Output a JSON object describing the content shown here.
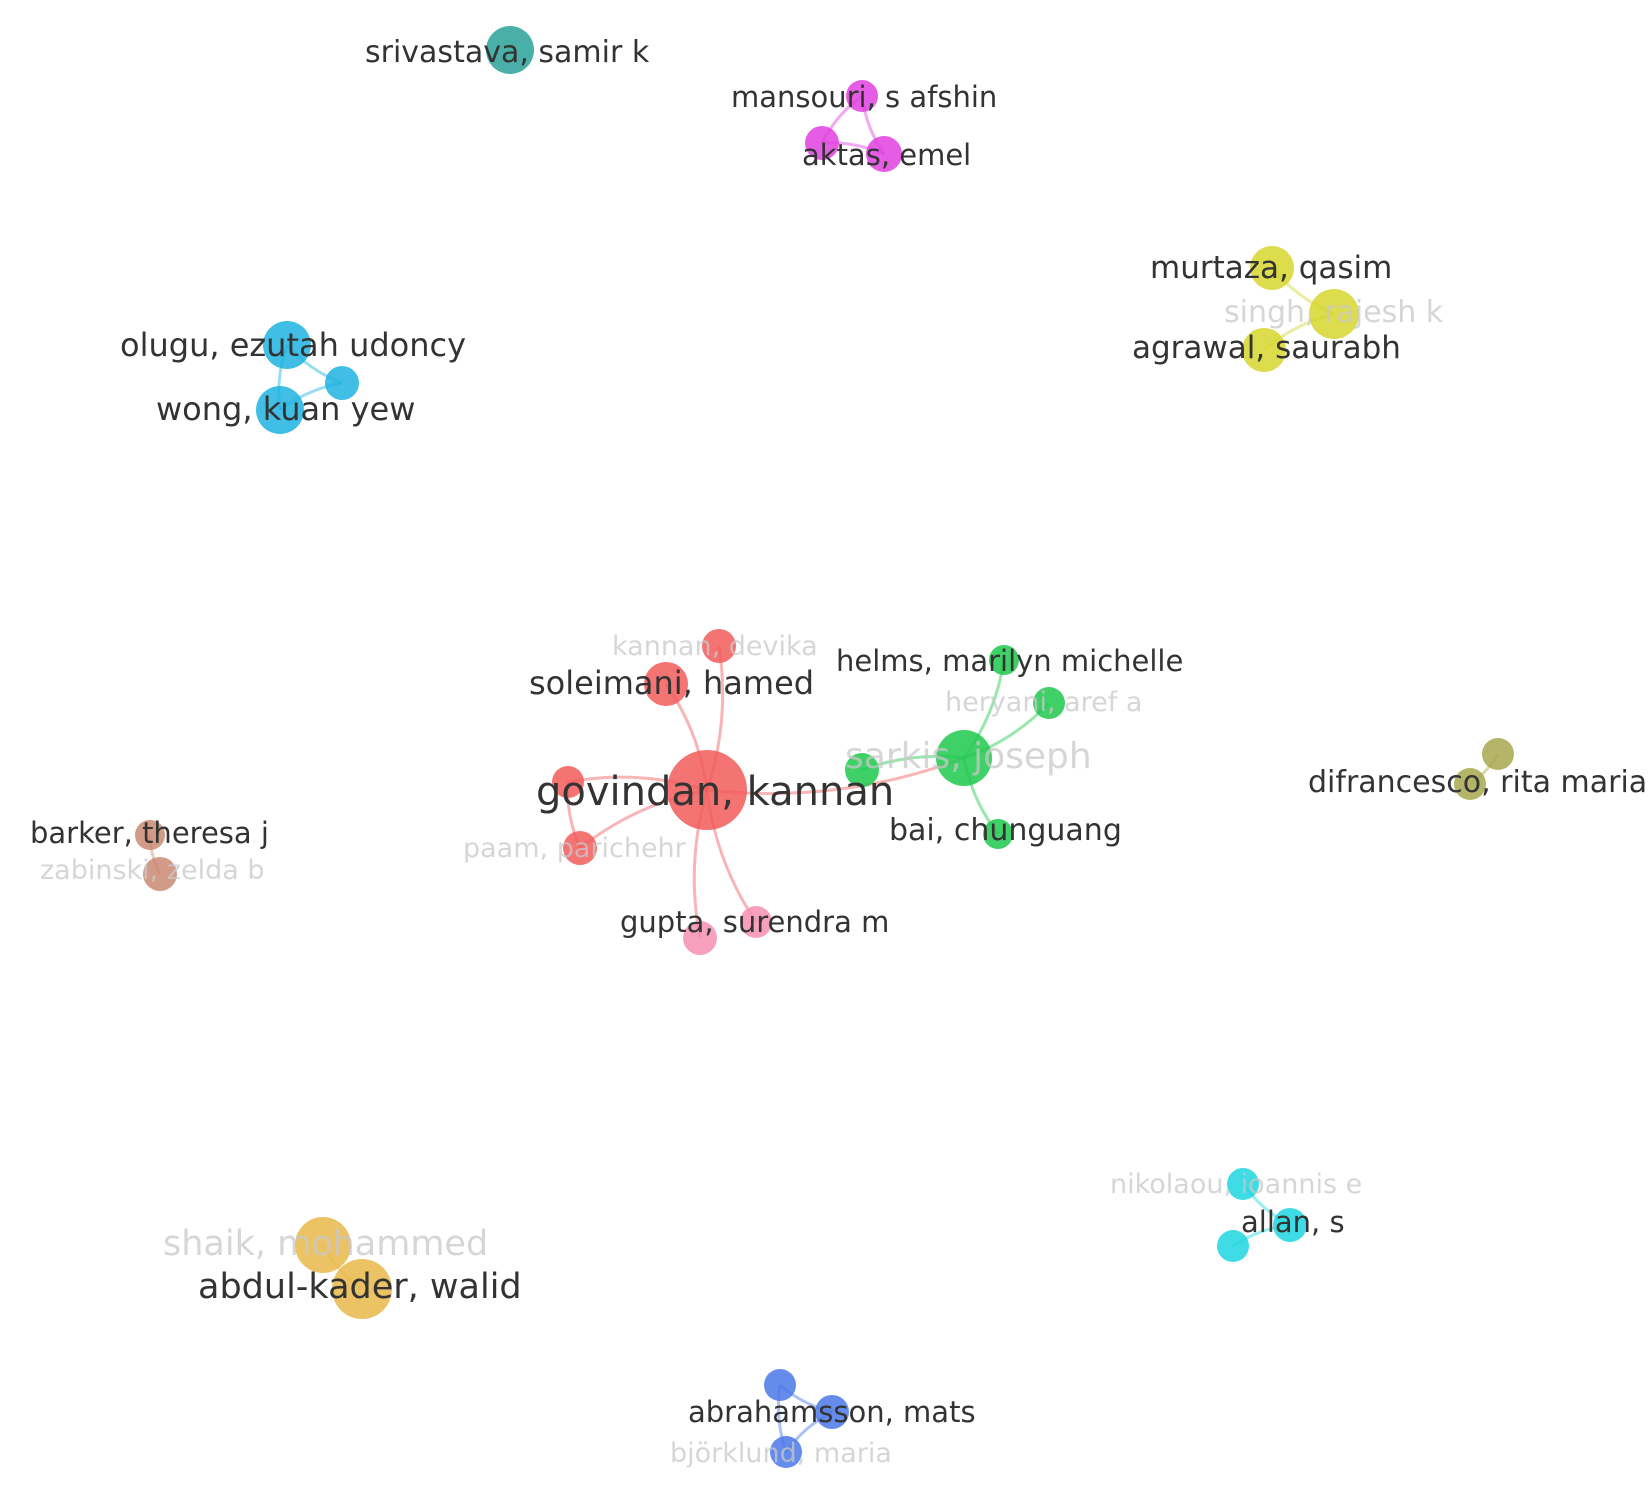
{
  "network": {
    "type": "co-authorship network",
    "nodes": [
      {
        "id": "srivastava",
        "label": "srivastava, samir k",
        "color": "#2aa198",
        "cluster": "teal",
        "weight": 2,
        "faded": false
      },
      {
        "id": "mansouri",
        "label": "mansouri, s afshin",
        "color": "#e040e0",
        "cluster": "magenta",
        "weight": 1,
        "faded": false
      },
      {
        "id": "aktas",
        "label": "aktas, emel",
        "color": "#e040e0",
        "cluster": "magenta",
        "weight": 1,
        "faded": false
      },
      {
        "id": "magenta3",
        "label": "",
        "color": "#e040e0",
        "cluster": "magenta",
        "weight": 1,
        "faded": false
      },
      {
        "id": "murtaza",
        "label": "murtaza, qasim",
        "color": "#d6d62e",
        "cluster": "yellow",
        "weight": 2,
        "faded": false
      },
      {
        "id": "singh",
        "label": "singh, rajesh k",
        "color": "#d6d62e",
        "cluster": "yellow",
        "weight": 2,
        "faded": true
      },
      {
        "id": "agrawal",
        "label": "agrawal, saurabh",
        "color": "#d6d62e",
        "cluster": "yellow",
        "weight": 2,
        "faded": false
      },
      {
        "id": "olugu",
        "label": "olugu, ezutah udoncy",
        "color": "#1fb3e0",
        "cluster": "skyblue",
        "weight": 2,
        "faded": false
      },
      {
        "id": "skyblue3",
        "label": "",
        "color": "#1fb3e0",
        "cluster": "skyblue",
        "weight": 1,
        "faded": false
      },
      {
        "id": "wong",
        "label": "wong, kuan yew",
        "color": "#1fb3e0",
        "cluster": "skyblue",
        "weight": 2,
        "faded": false
      },
      {
        "id": "kannan",
        "label": "kannan, devika",
        "color": "#f25a5a",
        "cluster": "red",
        "weight": 1,
        "faded": true
      },
      {
        "id": "soleimani",
        "label": "soleimani, hamed",
        "color": "#f25a5a",
        "cluster": "red",
        "weight": 2,
        "faded": false
      },
      {
        "id": "govindan",
        "label": "govindan, kannan",
        "color": "#f25a5a",
        "cluster": "red",
        "weight": 5,
        "faded": false
      },
      {
        "id": "red4",
        "label": "",
        "color": "#f25a5a",
        "cluster": "red",
        "weight": 1,
        "faded": false
      },
      {
        "id": "paam",
        "label": "paam, parichehr",
        "color": "#f25a5a",
        "cluster": "red",
        "weight": 1,
        "faded": true
      },
      {
        "id": "gupta",
        "label": "gupta, surendra m",
        "color": "#f48fb1",
        "cluster": "pink",
        "weight": 1,
        "faded": false
      },
      {
        "id": "pink2",
        "label": "",
        "color": "#f48fb1",
        "cluster": "pink",
        "weight": 1,
        "faded": false
      },
      {
        "id": "helms",
        "label": "helms, marilyn michelle",
        "color": "#1ec84e",
        "cluster": "green",
        "weight": 1,
        "faded": false
      },
      {
        "id": "heryani",
        "label": "heryani, aref a",
        "color": "#1ec84e",
        "cluster": "green",
        "weight": 1,
        "faded": true
      },
      {
        "id": "sarkis",
        "label": "sarkis, joseph",
        "color": "#1ec84e",
        "cluster": "green",
        "weight": 3,
        "faded": true
      },
      {
        "id": "green4",
        "label": "",
        "color": "#1ec84e",
        "cluster": "green",
        "weight": 1,
        "faded": false
      },
      {
        "id": "bai",
        "label": "bai, chunguang",
        "color": "#1ec84e",
        "cluster": "green",
        "weight": 1,
        "faded": false
      },
      {
        "id": "difrancesco",
        "label": "difrancesco, rita maria",
        "color": "#a8a850",
        "cluster": "olive",
        "weight": 1,
        "faded": false
      },
      {
        "id": "olive2",
        "label": "",
        "color": "#a8a850",
        "cluster": "olive",
        "weight": 1,
        "faded": false
      },
      {
        "id": "barker",
        "label": "barker, theresa j",
        "color": "#c98a72",
        "cluster": "brown",
        "weight": 1,
        "faded": false
      },
      {
        "id": "zabinski",
        "label": "zabinski, zelda b",
        "color": "#c98a72",
        "cluster": "brown",
        "weight": 1,
        "faded": true
      },
      {
        "id": "nikolaou",
        "label": "nikolaou, ioannis e",
        "color": "#1ed6e0",
        "cluster": "cyan",
        "weight": 1,
        "faded": true
      },
      {
        "id": "allan",
        "label": "allan, s",
        "color": "#1ed6e0",
        "cluster": "cyan",
        "weight": 1,
        "faded": false
      },
      {
        "id": "cyan3",
        "label": "",
        "color": "#1ed6e0",
        "cluster": "cyan",
        "weight": 1,
        "faded": false
      },
      {
        "id": "shaik",
        "label": "shaik, mohammed",
        "color": "#e8b84a",
        "cluster": "gold",
        "weight": 3,
        "faded": true
      },
      {
        "id": "abdulkader",
        "label": "abdul-kader, walid",
        "color": "#e8b84a",
        "cluster": "gold",
        "weight": 3,
        "faded": false
      },
      {
        "id": "blue1",
        "label": "",
        "color": "#4a78e8",
        "cluster": "blue",
        "weight": 1,
        "faded": false
      },
      {
        "id": "abrahamsson",
        "label": "abrahamsson, mats",
        "color": "#4a78e8",
        "cluster": "blue",
        "weight": 1,
        "faded": false
      },
      {
        "id": "bjorklund",
        "label": "björklund, maria",
        "color": "#4a78e8",
        "cluster": "blue",
        "weight": 1,
        "faded": true
      }
    ],
    "links": [
      {
        "source": "mansouri",
        "target": "aktas"
      },
      {
        "source": "mansouri",
        "target": "magenta3"
      },
      {
        "source": "aktas",
        "target": "magenta3"
      },
      {
        "source": "murtaza",
        "target": "singh"
      },
      {
        "source": "singh",
        "target": "agrawal"
      },
      {
        "source": "olugu",
        "target": "skyblue3"
      },
      {
        "source": "olugu",
        "target": "wong"
      },
      {
        "source": "skyblue3",
        "target": "wong"
      },
      {
        "source": "govindan",
        "target": "soleimani"
      },
      {
        "source": "govindan",
        "target": "kannan"
      },
      {
        "source": "govindan",
        "target": "red4"
      },
      {
        "source": "govindan",
        "target": "paam"
      },
      {
        "source": "red4",
        "target": "paam"
      },
      {
        "source": "govindan",
        "target": "gupta"
      },
      {
        "source": "govindan",
        "target": "pink2"
      },
      {
        "source": "govindan",
        "target": "sarkis"
      },
      {
        "source": "sarkis",
        "target": "helms"
      },
      {
        "source": "sarkis",
        "target": "heryani"
      },
      {
        "source": "sarkis",
        "target": "green4"
      },
      {
        "source": "sarkis",
        "target": "bai"
      },
      {
        "source": "difrancesco",
        "target": "olive2"
      },
      {
        "source": "barker",
        "target": "zabinski"
      },
      {
        "source": "nikolaou",
        "target": "allan"
      },
      {
        "source": "allan",
        "target": "cyan3"
      },
      {
        "source": "shaik",
        "target": "abdulkader"
      },
      {
        "source": "blue1",
        "target": "abrahamsson"
      },
      {
        "source": "abrahamsson",
        "target": "bjorklund"
      },
      {
        "source": "blue1",
        "target": "bjorklund"
      }
    ]
  }
}
